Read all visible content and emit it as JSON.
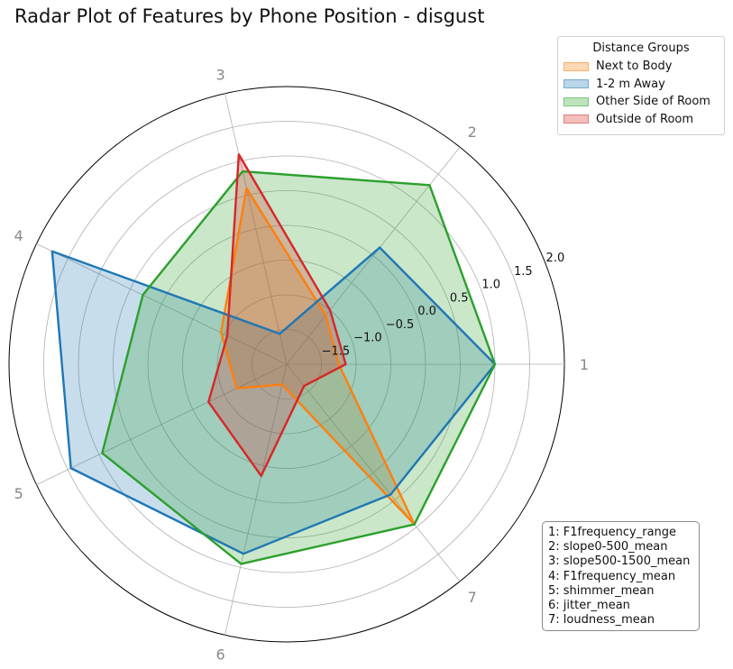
{
  "chart_data": {
    "type": "radar",
    "title": "Radar Plot of Features by Phone Position - disgust",
    "axes": [
      "1",
      "2",
      "3",
      "4",
      "5",
      "6",
      "7"
    ],
    "axis_legend": [
      "1: F1frequency_range",
      "2: slope0-500_mean",
      "3: slope500-1500_mean",
      "4: F1frequency_mean",
      "5: shimmer_mean",
      "6: jitter_mean",
      "7: loudness_mean"
    ],
    "radial_range": [
      -2.0,
      2.0
    ],
    "radial_ticks": [
      -1.5,
      -1.0,
      -0.5,
      0.0,
      0.5,
      1.0,
      1.5,
      2.0
    ],
    "radial_tick_labels": [
      "−1.5",
      "−1.0",
      "−0.5",
      "0.0",
      "0.5",
      "1.0",
      "1.5",
      "2.0"
    ],
    "legend_title": "Distance Groups",
    "legend_position": "upper right, outside plot",
    "grid": true,
    "series": [
      {
        "name": "Next to Body",
        "color": "#ff7f0e",
        "values": [
          -1.25,
          -1.1,
          0.6,
          -0.95,
          -1.2,
          -1.7,
          0.95
        ]
      },
      {
        "name": "1-2 m Away",
        "color": "#1f77b4",
        "values": [
          1.0,
          0.15,
          -1.55,
          1.75,
          1.45,
          0.8,
          0.4
        ]
      },
      {
        "name": "Other Side of Room",
        "color": "#2ca02c",
        "values": [
          1.0,
          1.3,
          0.85,
          0.3,
          0.95,
          0.95,
          0.95
        ]
      },
      {
        "name": "Outside of Room",
        "color": "#d62728",
        "values": [
          -1.15,
          -1.0,
          1.1,
          -1.05,
          -0.75,
          -0.35,
          -1.6
        ]
      }
    ]
  }
}
